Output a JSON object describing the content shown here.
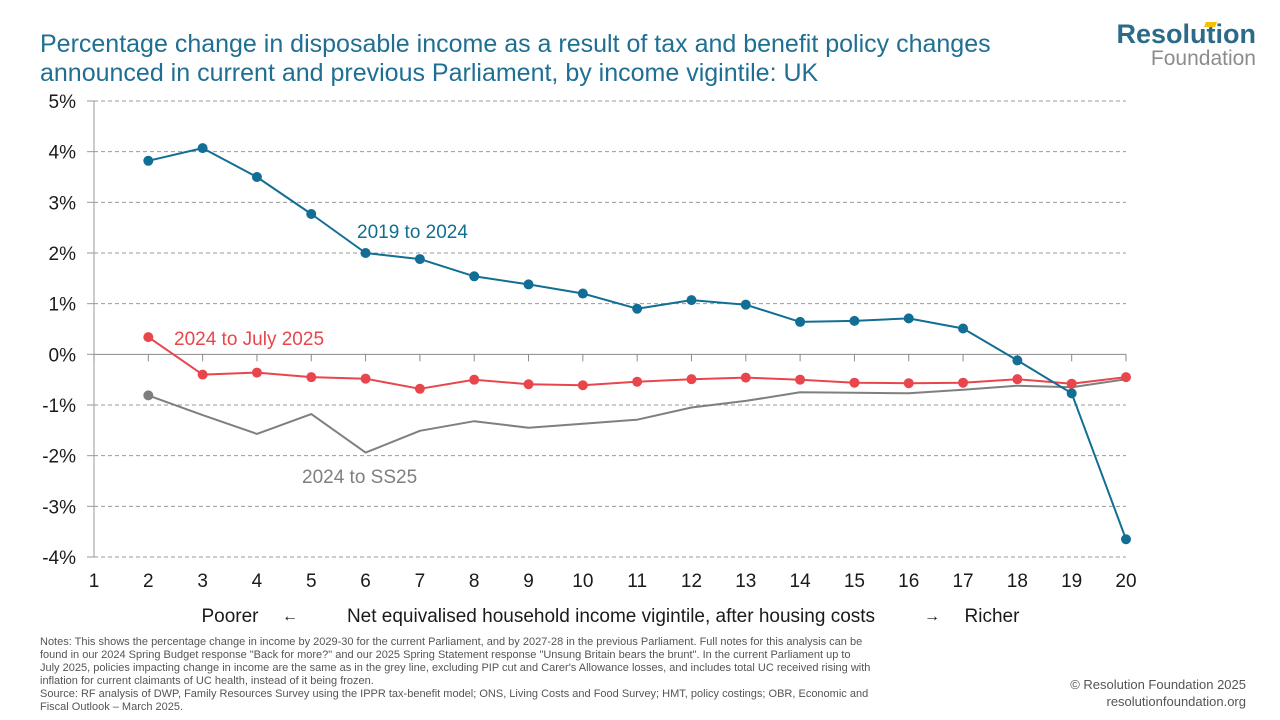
{
  "title": {
    "line1": "Percentage change in disposable income as a result of tax and benefit policy changes",
    "line2": "announced in current and previous Parliament, by income vigintile: UK"
  },
  "logo": {
    "name": "Resolution",
    "sub": "Foundation"
  },
  "chart_data": {
    "type": "line",
    "x": [
      1,
      2,
      3,
      4,
      5,
      6,
      7,
      8,
      9,
      10,
      11,
      12,
      13,
      14,
      15,
      16,
      17,
      18,
      19,
      20
    ],
    "y_ticks": [
      5,
      4,
      3,
      2,
      1,
      0,
      -1,
      -2,
      -3,
      -4
    ],
    "y_tick_labels": [
      "5%",
      "4%",
      "3%",
      "2%",
      "1%",
      "0%",
      "-1%",
      "-2%",
      "-3%",
      "-4%"
    ],
    "ylim": [
      -4,
      5
    ],
    "xlim": [
      1,
      20
    ],
    "grid": true,
    "xlabel_left": "Poorer",
    "xlabel_left_arrow": "←",
    "xlabel": "Net equivalised household income vigintile, after housing costs",
    "xlabel_right_arrow": "→",
    "xlabel_right": "Richer",
    "series": [
      {
        "name": "2019 to 2024",
        "color": "#126e94",
        "markers": true,
        "x": [
          2,
          3,
          4,
          5,
          6,
          7,
          8,
          9,
          10,
          11,
          12,
          13,
          14,
          15,
          16,
          17,
          18,
          19,
          20
        ],
        "values": [
          3.82,
          4.07,
          3.5,
          2.77,
          2.0,
          1.88,
          1.54,
          1.38,
          1.2,
          0.9,
          1.07,
          0.98,
          0.64,
          0.66,
          0.71,
          0.51,
          -0.12,
          -0.77,
          -3.65
        ]
      },
      {
        "name": "2024 to July 2025",
        "color": "#e8464c",
        "markers": true,
        "x": [
          2,
          3,
          4,
          5,
          6,
          7,
          8,
          9,
          10,
          11,
          12,
          13,
          14,
          15,
          16,
          17,
          18,
          19,
          20
        ],
        "values": [
          0.34,
          -0.4,
          -0.36,
          -0.45,
          -0.48,
          -0.68,
          -0.5,
          -0.59,
          -0.61,
          -0.54,
          -0.49,
          -0.46,
          -0.5,
          -0.56,
          -0.57,
          -0.56,
          -0.49,
          -0.58,
          -0.45
        ]
      },
      {
        "name": "2024 to SS25",
        "color": "#7f7f7f",
        "markers": false,
        "start_marker": true,
        "x": [
          2,
          3,
          4,
          5,
          6,
          7,
          8,
          9,
          10,
          11,
          12,
          13,
          14,
          15,
          16,
          17,
          18,
          19,
          20
        ],
        "values": [
          -0.81,
          -1.2,
          -1.57,
          -1.18,
          -1.94,
          -1.51,
          -1.32,
          -1.45,
          -1.37,
          -1.29,
          -1.05,
          -0.92,
          -0.75,
          -0.76,
          -0.77,
          -0.7,
          -0.62,
          -0.65,
          -0.49
        ]
      }
    ]
  },
  "notes": {
    "line1": "Notes: This shows the percentage change in income by 2029-30 for the current Parliament, and by 2027-28 in the previous Parliament. Full notes for this analysis can be",
    "line2": "found in our 2024 Spring Budget response \"Back for more?\" and our 2025 Spring Statement response \"Unsung Britain bears the brunt\". In the current Parliament up to",
    "line3": "July 2025, policies impacting change in income are the same as in the grey line, excluding PIP cut and Carer's Allowance losses, and includes total UC received rising with",
    "line4": "inflation for current claimants of UC health, instead of it being frozen.",
    "line5": "Source: RF analysis of DWP, Family Resources Survey using the IPPR tax-benefit model; ONS, Living Costs and Food Survey; HMT, policy costings; OBR, Economic and",
    "line6": "Fiscal Outlook – March 2025."
  },
  "copyright": {
    "line1": "© Resolution Foundation 2025",
    "line2": "resolutionfoundation.org"
  }
}
